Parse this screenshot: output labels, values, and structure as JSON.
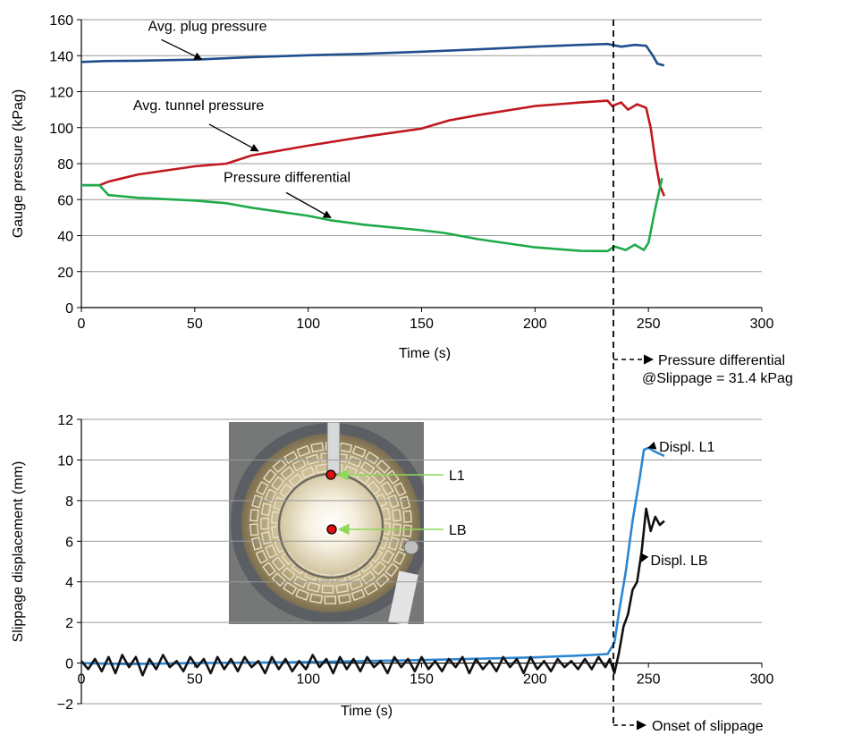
{
  "chart_data": [
    {
      "type": "line",
      "xlabel": "Time (s)",
      "ylabel": "Gauge pressure (kPag)",
      "xlim": [
        0,
        300
      ],
      "ylim": [
        0,
        160
      ],
      "xticks": [
        "0",
        "50",
        "100",
        "150",
        "200",
        "250",
        "300"
      ],
      "yticks": [
        "0",
        "20",
        "40",
        "60",
        "80",
        "100",
        "120",
        "140",
        "160"
      ],
      "grid": "horizontal",
      "series": [
        {
          "name": "Avg. plug pressure",
          "color": "#1f4e8c",
          "points": [
            [
              0,
              136.5
            ],
            [
              10,
              137
            ],
            [
              25,
              137.2
            ],
            [
              50,
              137.8
            ],
            [
              75,
              139.2
            ],
            [
              100,
              140.2
            ],
            [
              125,
              141
            ],
            [
              150,
              142.2
            ],
            [
              175,
              143.5
            ],
            [
              200,
              145
            ],
            [
              220,
              146
            ],
            [
              232,
              146.5
            ],
            [
              238,
              145
            ],
            [
              244,
              146
            ],
            [
              249,
              145.5
            ],
            [
              252,
              140
            ],
            [
              254,
              135.5
            ],
            [
              257,
              134.5
            ]
          ]
        },
        {
          "name": "Avg. tunnel pressure",
          "color": "#c0181f",
          "points": [
            [
              0,
              68
            ],
            [
              8,
              68
            ],
            [
              12,
              70
            ],
            [
              25,
              74
            ],
            [
              50,
              78.5
            ],
            [
              64,
              80
            ],
            [
              75,
              84.5
            ],
            [
              100,
              90
            ],
            [
              125,
              95
            ],
            [
              150,
              99.5
            ],
            [
              162,
              104
            ],
            [
              175,
              107
            ],
            [
              200,
              112
            ],
            [
              220,
              114
            ],
            [
              232,
              115
            ],
            [
              234,
              112
            ],
            [
              238,
              114
            ],
            [
              241,
              110
            ],
            [
              245,
              113
            ],
            [
              249,
              111
            ],
            [
              251,
              100
            ],
            [
              253,
              82
            ],
            [
              255,
              68
            ],
            [
              257,
              62
            ]
          ]
        },
        {
          "name": "Pressure differential",
          "color": "#1faa4a",
          "points": [
            [
              0,
              68
            ],
            [
              8,
              68
            ],
            [
              12,
              62.5
            ],
            [
              25,
              61
            ],
            [
              50,
              59.5
            ],
            [
              64,
              58
            ],
            [
              75,
              55.5
            ],
            [
              100,
              51
            ],
            [
              110,
              48.5
            ],
            [
              125,
              46
            ],
            [
              150,
              43
            ],
            [
              160,
              41.5
            ],
            [
              175,
              38
            ],
            [
              200,
              33.5
            ],
            [
              220,
              31.5
            ],
            [
              232,
              31.4
            ],
            [
              235,
              34
            ],
            [
              240,
              32
            ],
            [
              244,
              35
            ],
            [
              248,
              32
            ],
            [
              250,
              36
            ],
            [
              253,
              55
            ],
            [
              256,
              72
            ]
          ]
        }
      ],
      "annotations": [
        {
          "text": "Avg. plug pressure",
          "x": 53,
          "y": 138
        },
        {
          "text": "Avg. tunnel pressure",
          "x": 78,
          "y": 87
        },
        {
          "text": "Pressure differential",
          "x": 110,
          "y": 50
        }
      ],
      "vline_x": 232,
      "callout": {
        "line1": "Pressure differential",
        "line2": "@Slippage = 31.4 kPag"
      }
    },
    {
      "type": "line",
      "xlabel": "Time (s)",
      "ylabel": "Slippage displacement (mm)",
      "xlim": [
        0,
        300
      ],
      "ylim": [
        -2,
        12
      ],
      "xticks": [
        "0",
        "50",
        "100",
        "150",
        "200",
        "250",
        "300"
      ],
      "yticks": [
        "−2",
        "0",
        "2",
        "4",
        "6",
        "8",
        "10",
        "12"
      ],
      "grid": "horizontal",
      "series": [
        {
          "name": "Displ. L1",
          "color": "#2e86d1",
          "points": [
            [
              0,
              0
            ],
            [
              20,
              -0.05
            ],
            [
              50,
              0
            ],
            [
              100,
              0.05
            ],
            [
              150,
              0.15
            ],
            [
              200,
              0.28
            ],
            [
              225,
              0.4
            ],
            [
              232,
              0.45
            ],
            [
              235,
              1
            ],
            [
              237,
              2.5
            ],
            [
              240,
              4.5
            ],
            [
              243,
              7
            ],
            [
              246,
              9
            ],
            [
              248,
              10.5
            ],
            [
              250,
              10.6
            ],
            [
              253,
              10.4
            ],
            [
              255,
              10.3
            ],
            [
              257,
              10.2
            ]
          ]
        },
        {
          "name": "Displ. LB",
          "color": "#111111",
          "points": [
            [
              0,
              0.1
            ],
            [
              3,
              -0.3
            ],
            [
              6,
              0.2
            ],
            [
              9,
              -0.4
            ],
            [
              12,
              0.3
            ],
            [
              15,
              -0.5
            ],
            [
              18,
              0.4
            ],
            [
              21,
              -0.2
            ],
            [
              24,
              0.3
            ],
            [
              27,
              -0.6
            ],
            [
              30,
              0.2
            ],
            [
              33,
              -0.3
            ],
            [
              36,
              0.4
            ],
            [
              39,
              -0.2
            ],
            [
              42,
              0.1
            ],
            [
              45,
              -0.4
            ],
            [
              48,
              0.3
            ],
            [
              51,
              -0.2
            ],
            [
              54,
              0.2
            ],
            [
              57,
              -0.5
            ],
            [
              60,
              0.3
            ],
            [
              63,
              -0.3
            ],
            [
              66,
              0.2
            ],
            [
              69,
              -0.4
            ],
            [
              72,
              0.3
            ],
            [
              75,
              -0.2
            ],
            [
              78,
              0.1
            ],
            [
              81,
              -0.5
            ],
            [
              84,
              0.3
            ],
            [
              87,
              -0.3
            ],
            [
              90,
              0.2
            ],
            [
              93,
              -0.4
            ],
            [
              96,
              0.1
            ],
            [
              99,
              -0.3
            ],
            [
              102,
              0.4
            ],
            [
              105,
              -0.2
            ],
            [
              108,
              0.2
            ],
            [
              111,
              -0.5
            ],
            [
              114,
              0.3
            ],
            [
              117,
              -0.3
            ],
            [
              120,
              0.2
            ],
            [
              123,
              -0.4
            ],
            [
              126,
              0.3
            ],
            [
              129,
              -0.2
            ],
            [
              132,
              0.1
            ],
            [
              135,
              -0.5
            ],
            [
              138,
              0.3
            ],
            [
              141,
              -0.2
            ],
            [
              144,
              0.2
            ],
            [
              147,
              -0.4
            ],
            [
              150,
              0.3
            ],
            [
              153,
              -0.3
            ],
            [
              156,
              0.1
            ],
            [
              159,
              -0.4
            ],
            [
              162,
              0.2
            ],
            [
              165,
              -0.2
            ],
            [
              168,
              0.3
            ],
            [
              171,
              -0.5
            ],
            [
              174,
              0.2
            ],
            [
              177,
              -0.3
            ],
            [
              180,
              0.1
            ],
            [
              183,
              -0.4
            ],
            [
              186,
              0.3
            ],
            [
              189,
              -0.2
            ],
            [
              192,
              0.2
            ],
            [
              195,
              -0.5
            ],
            [
              198,
              0.3
            ],
            [
              201,
              -0.3
            ],
            [
              204,
              0.1
            ],
            [
              207,
              -0.4
            ],
            [
              210,
              0.2
            ],
            [
              213,
              -0.2
            ],
            [
              216,
              0.1
            ],
            [
              219,
              -0.3
            ],
            [
              222,
              0.2
            ],
            [
              225,
              -0.3
            ],
            [
              228,
              0.3
            ],
            [
              231,
              -0.2
            ],
            [
              233,
              0.2
            ],
            [
              235,
              -0.5
            ],
            [
              237,
              0.5
            ],
            [
              239,
              1.8
            ],
            [
              241,
              2.4
            ],
            [
              243,
              3.6
            ],
            [
              245,
              4
            ],
            [
              247,
              5.5
            ],
            [
              249,
              7.6
            ],
            [
              251,
              6.5
            ],
            [
              253,
              7.2
            ],
            [
              255,
              6.8
            ],
            [
              257,
              7
            ]
          ]
        }
      ],
      "annotations": [
        {
          "text": "Displ. L1",
          "x": 250,
          "y": 10.6
        },
        {
          "text": "Displ. LB",
          "x": 247,
          "y": 5
        }
      ],
      "vline_x": 232,
      "callout": {
        "line1": "Onset of slippage"
      }
    }
  ],
  "inset_photo": {
    "markers": [
      {
        "label": "L1",
        "color": "#e01010"
      },
      {
        "label": "LB",
        "color": "#e01010"
      }
    ],
    "arrow_color": "#8ed85a"
  }
}
